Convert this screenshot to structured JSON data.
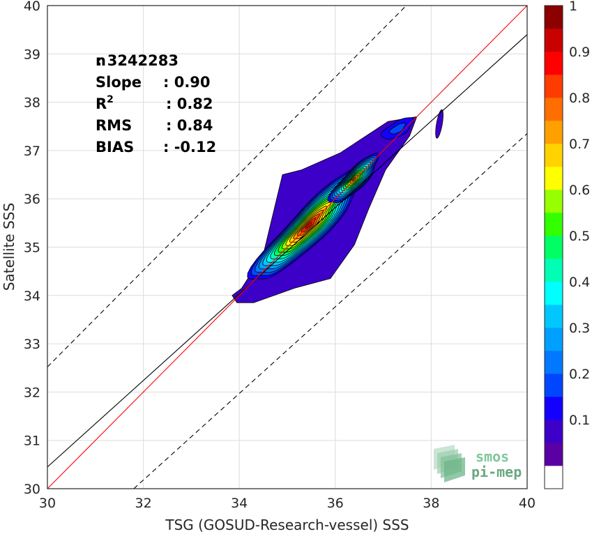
{
  "chart_data": {
    "type": "heatmap",
    "title": "",
    "xlabel": "TSG (GOSUD-Research-vessel) SSS",
    "ylabel": "Satellite SSS",
    "xlim": [
      30,
      40
    ],
    "ylim": [
      30,
      40
    ],
    "xticks": [
      "30",
      "32",
      "34",
      "36",
      "38",
      "40"
    ],
    "yticks": [
      "30",
      "31",
      "32",
      "33",
      "34",
      "35",
      "36",
      "37",
      "38",
      "39",
      "40"
    ],
    "grid": true,
    "stats": [
      {
        "label": "n",
        "value": ": 3242283"
      },
      {
        "label": "Slope",
        "value": ": 0.90"
      },
      {
        "label": "R",
        "sup": "2",
        "value": ": 0.82"
      },
      {
        "label": "RMS",
        "value": ": 0.84"
      },
      {
        "label": "BIAS",
        "value": ": -0.12"
      }
    ],
    "lines": {
      "one_to_one": {
        "x": [
          30,
          40
        ],
        "y": [
          30,
          40
        ],
        "color": "#ff0000"
      },
      "fit": {
        "x": [
          30,
          40
        ],
        "y": [
          30.45,
          39.4
        ],
        "color": "#000000"
      },
      "upper_dashed": {
        "x": [
          30,
          40
        ],
        "y": [
          32.52,
          42.52
        ],
        "color": "#000000",
        "style": "dashed"
      },
      "lower_dashed": {
        "x": [
          31.8,
          40
        ],
        "y": [
          30,
          37.35
        ],
        "color": "#000000",
        "style": "dashed"
      }
    },
    "density_peaks": [
      {
        "x": 35.45,
        "y": 35.45,
        "level": 0.9
      },
      {
        "x": 36.4,
        "y": 36.4,
        "level": 0.7
      },
      {
        "x": 37.3,
        "y": 37.45,
        "level": 0.2
      }
    ],
    "colorbar": {
      "ticks": [
        "0.1",
        "0.2",
        "0.3",
        "0.4",
        "0.5",
        "0.6",
        "0.7",
        "0.8",
        "0.9",
        "1"
      ],
      "levels": [
        0,
        0.05,
        0.1,
        0.15,
        0.2,
        0.25,
        0.3,
        0.35,
        0.4,
        0.45,
        0.5,
        0.55,
        0.6,
        0.65,
        0.7,
        0.75,
        0.8,
        0.85,
        0.9,
        0.95,
        1.0
      ],
      "colors": [
        "#ffffff",
        "#5a00a5",
        "#3c00c8",
        "#1400ff",
        "#0046ff",
        "#0078ff",
        "#00a0ff",
        "#00c8ff",
        "#00ffff",
        "#00ffb4",
        "#00ff64",
        "#32ff00",
        "#96ff00",
        "#ffff00",
        "#ffd200",
        "#ffa000",
        "#ff6e00",
        "#ff3c00",
        "#ff0000",
        "#c80000",
        "#8c0000"
      ]
    },
    "logo": {
      "line1": "smos",
      "line2": "pi-mep"
    }
  }
}
